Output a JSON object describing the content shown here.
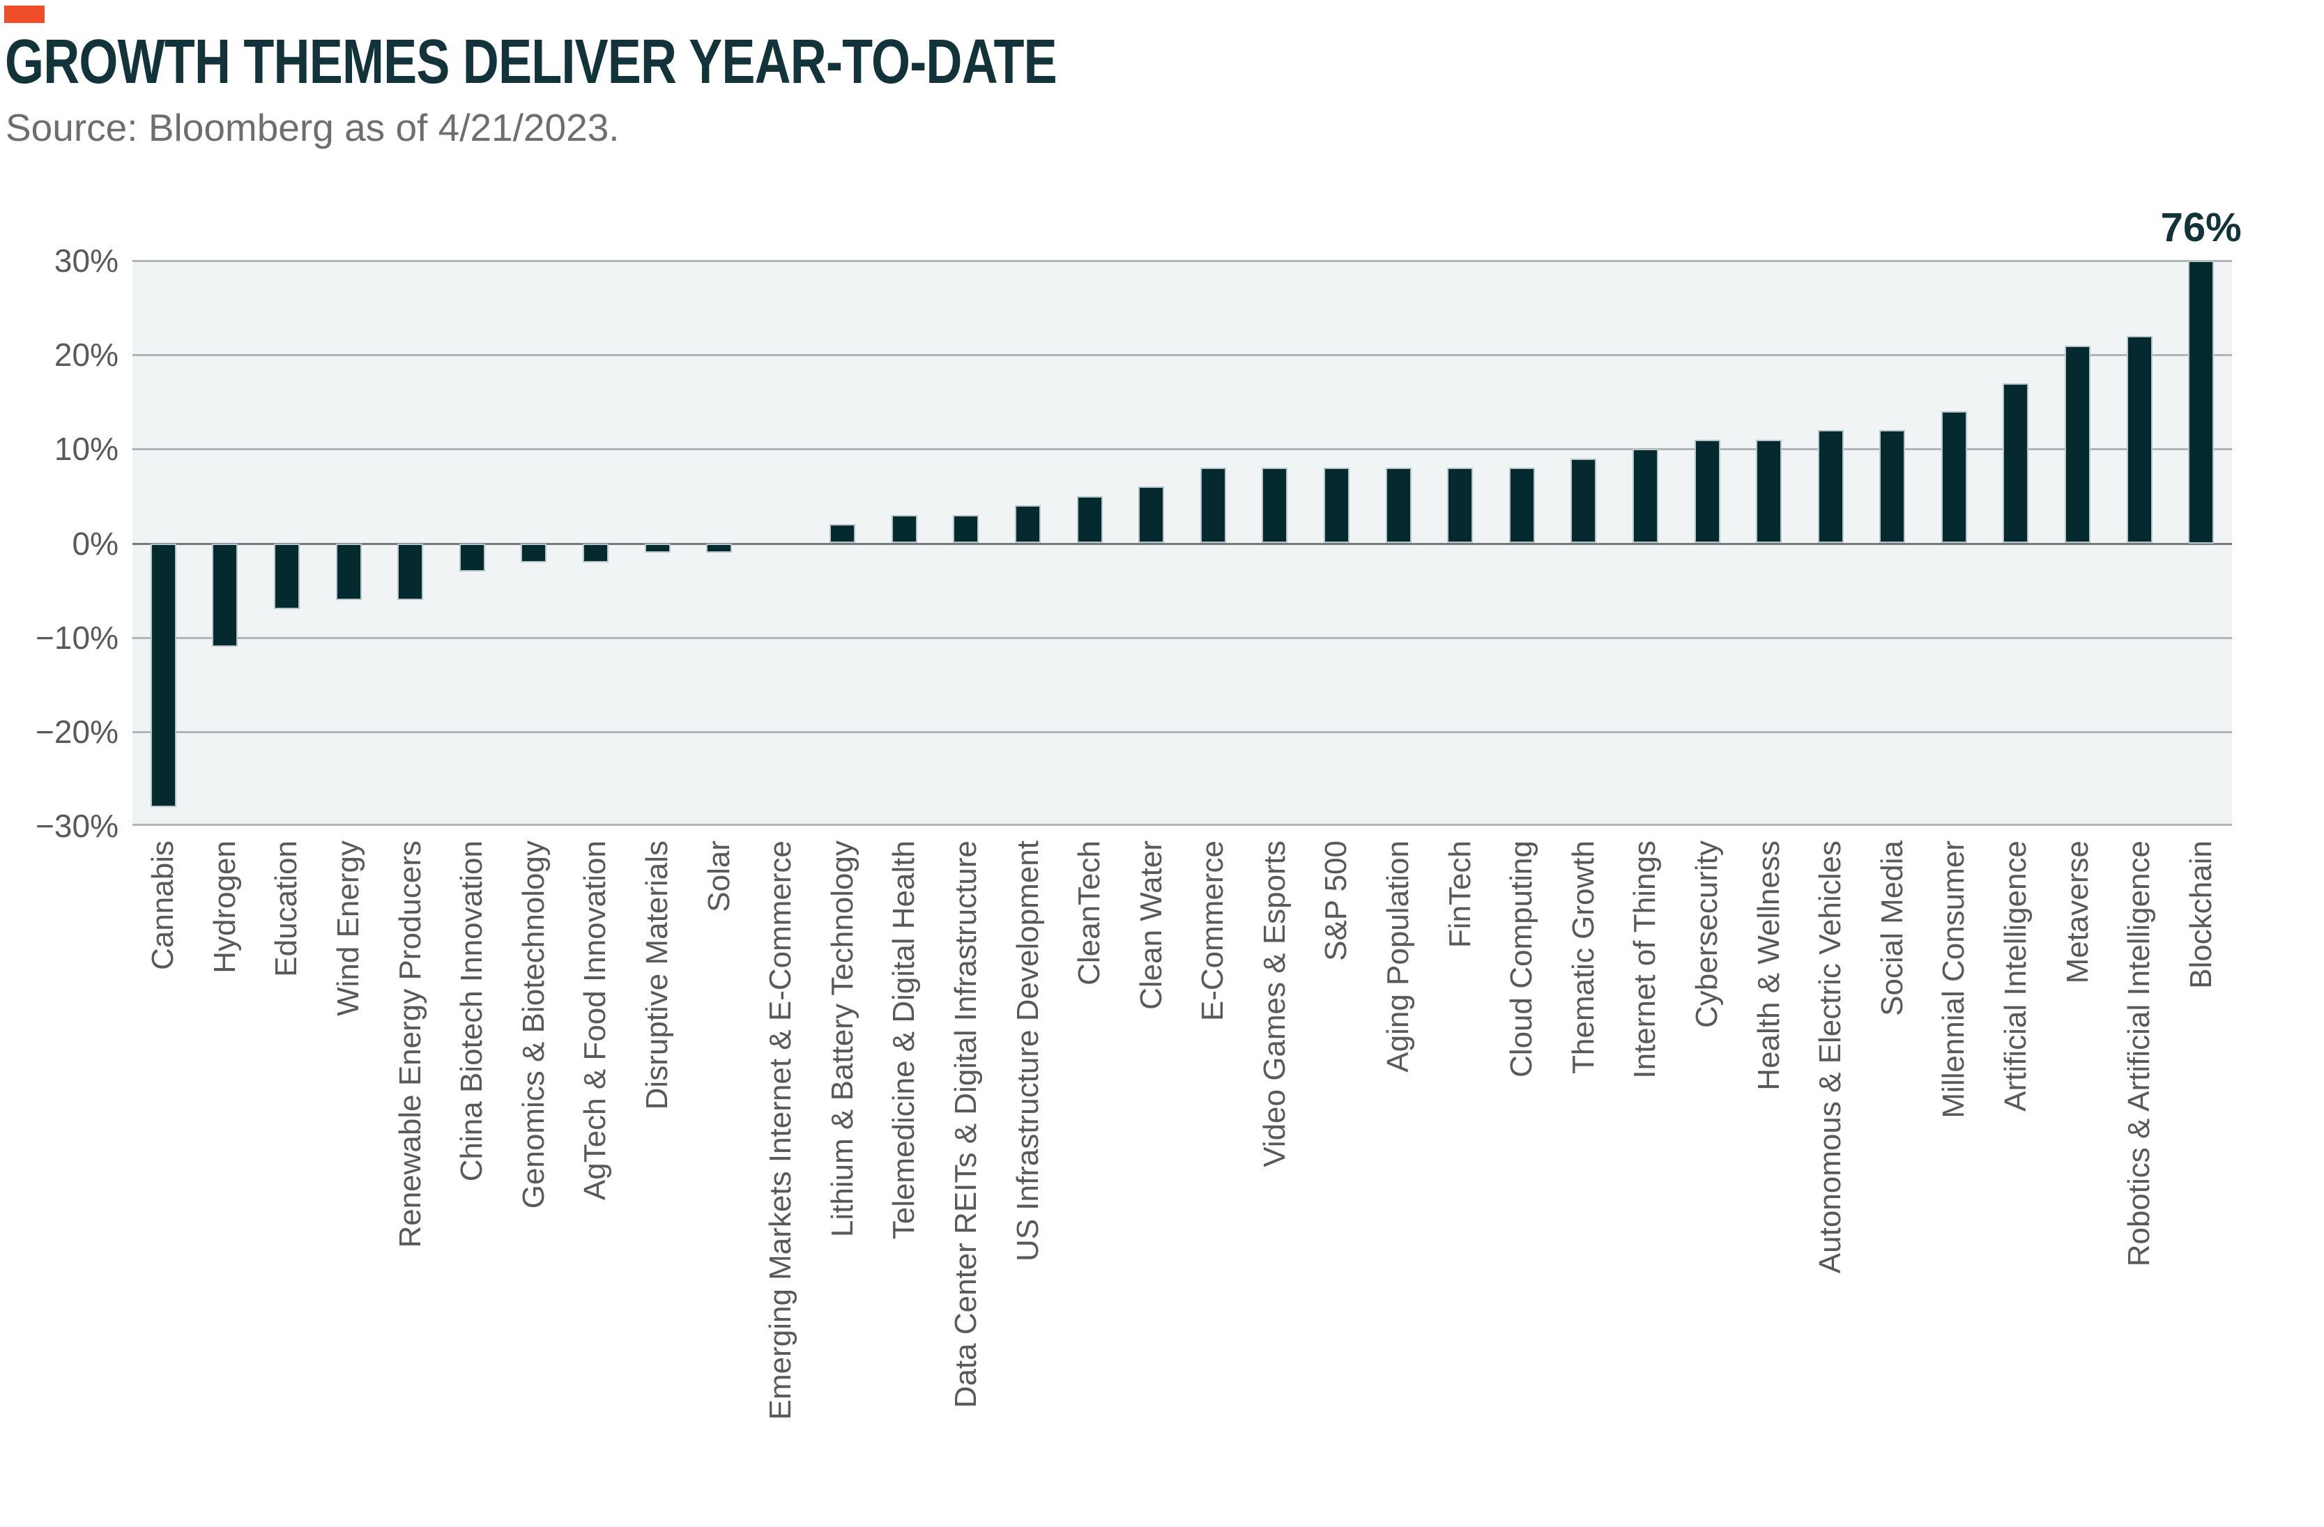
{
  "header": {
    "accent_color": "#F04E2A",
    "title": "GROWTH THEMES DELIVER YEAR-TO-DATE",
    "title_color": "#12333A",
    "source": "Source: Bloomberg as of 4/21/2023.",
    "source_color": "#6D6E71"
  },
  "chart_data": {
    "type": "bar",
    "title": "GROWTH THEMES DELIVER YEAR-TO-DATE",
    "unit": "%",
    "categories": [
      "Cannabis",
      "Hydrogen",
      "Education",
      "Wind Energy",
      "Renewable Energy Producers",
      "China Biotech Innovation",
      "Genomics & Biotechnology",
      "AgTech & Food Innovation",
      "Disruptive Materials",
      "Solar",
      "Emerging Markets Internet & E-Commerce",
      "Lithium & Battery Technology",
      "Telemedicine & Digital Health",
      "Data Center REITs & Digital Infrastructure",
      "US Infrastructure Development",
      "CleanTech",
      "Clean Water",
      "E-Commerce",
      "Video Games & Esports",
      "S&P 500",
      "Aging Population",
      "FinTech",
      "Cloud Computing",
      "Thematic Growth",
      "Internet of Things",
      "Cybersecurity",
      "Health & Wellness",
      "Autonomous & Electric Vehicles",
      "Social Media",
      "Millennial Consumer",
      "Artificial Intelligence",
      "Metaverse",
      "Robotics & Artificial Intelligence",
      "Blockchain"
    ],
    "values": [
      -28,
      -11,
      -7,
      -6,
      -6,
      -3,
      -2,
      -2,
      -1,
      -1,
      0,
      2,
      3,
      3,
      4,
      5,
      6,
      8,
      8,
      8,
      8,
      8,
      8,
      9,
      10,
      11,
      11,
      12,
      12,
      14,
      17,
      21,
      22,
      76
    ],
    "ylim": [
      -30,
      30
    ],
    "ytick_values": [
      30,
      20,
      10,
      0,
      -10,
      -20,
      -30
    ],
    "ytick_labels": [
      "30%",
      "20%",
      "10%",
      "0%",
      "−10%",
      "−20%",
      "−30%"
    ],
    "grid": true,
    "legend": false,
    "bar_color": "#04292F",
    "plot_bg": "#F0F4F5",
    "gridline_color": "#B2B5B7",
    "zero_line_color": "#77797B",
    "tick_label_color": "#58595B",
    "annotation": {
      "category": "Blockchain",
      "text": "76%",
      "clipped_at_axis_max": true
    }
  }
}
